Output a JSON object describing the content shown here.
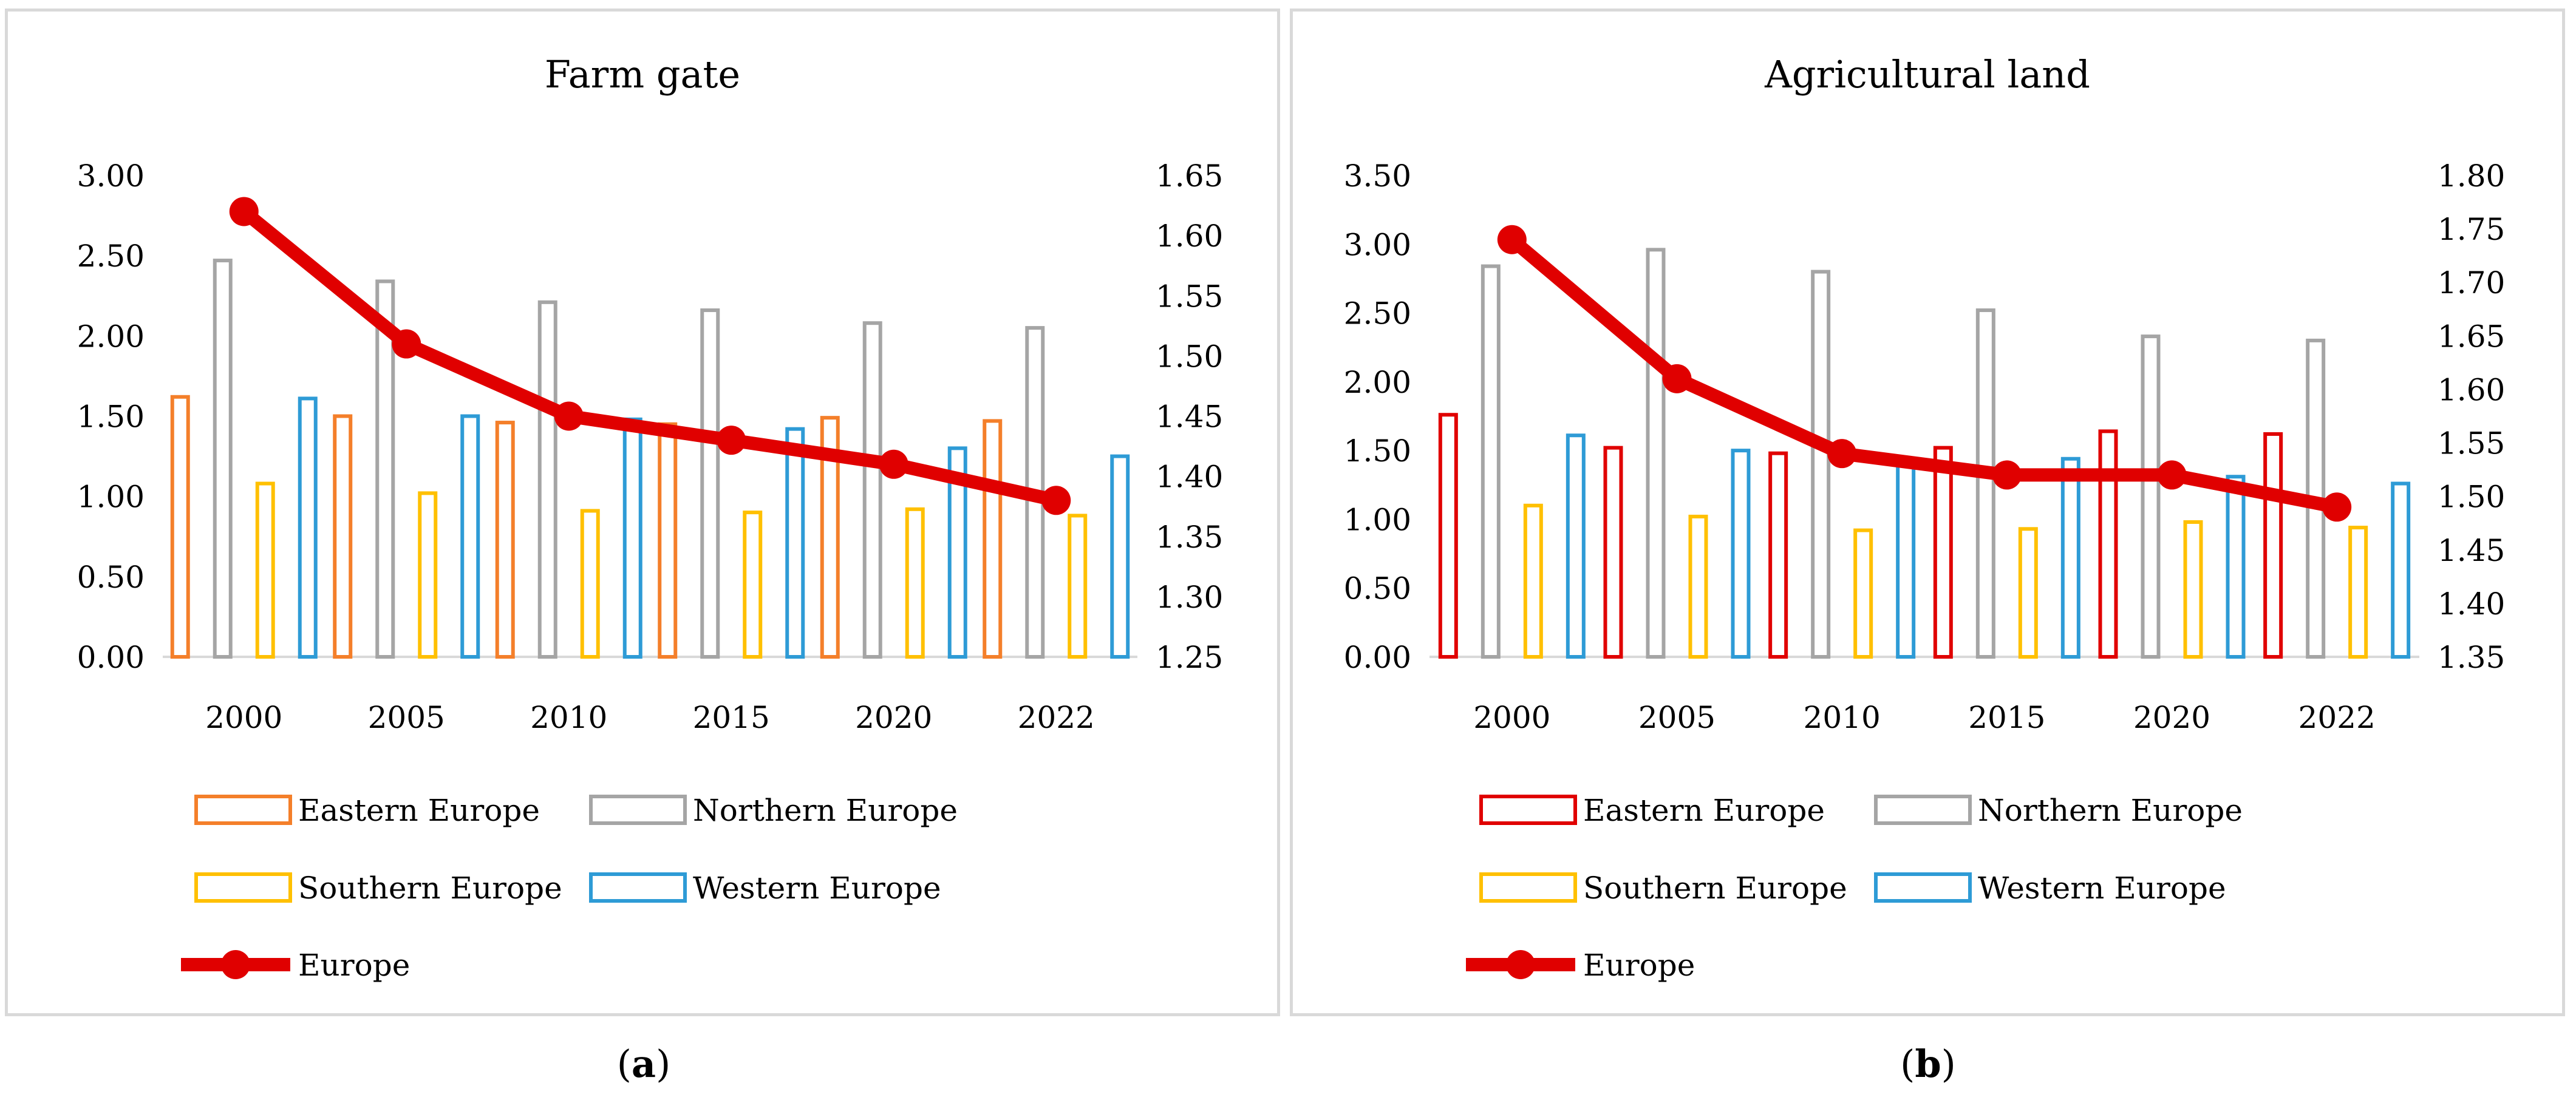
{
  "panels": [
    {
      "caption_letter": "a",
      "chart_data": {
        "type": "bar",
        "title": "Farm gate",
        "categories": [
          "2000",
          "2005",
          "2010",
          "2015",
          "2020",
          "2022"
        ],
        "left_axis": {
          "ylim": [
            0,
            3
          ],
          "ticks": [
            "0.00",
            "0.50",
            "1.00",
            "1.50",
            "2.00",
            "2.50",
            "3.00"
          ]
        },
        "right_axis": {
          "ylim": [
            1.25,
            1.65
          ],
          "ticks": [
            "1.25",
            "1.30",
            "1.35",
            "1.40",
            "1.45",
            "1.50",
            "1.55",
            "1.60",
            "1.65"
          ]
        },
        "series": [
          {
            "name": "Eastern Europe",
            "axis": "left",
            "kind": "bar",
            "color": "#f47f2a",
            "values": [
              1.62,
              1.5,
              1.46,
              1.45,
              1.49,
              1.47
            ]
          },
          {
            "name": "Northern Europe",
            "axis": "left",
            "kind": "bar",
            "color": "#a5a5a5",
            "values": [
              2.47,
              2.34,
              2.21,
              2.16,
              2.08,
              2.05
            ]
          },
          {
            "name": "Southern Europe",
            "axis": "left",
            "kind": "bar",
            "color": "#ffc000",
            "values": [
              1.08,
              1.02,
              0.91,
              0.9,
              0.92,
              0.88
            ]
          },
          {
            "name": "Western Europe",
            "axis": "left",
            "kind": "bar",
            "color": "#2e9bd6",
            "values": [
              1.61,
              1.5,
              1.48,
              1.42,
              1.3,
              1.25
            ]
          },
          {
            "name": "Europe",
            "axis": "right",
            "kind": "line",
            "color": "#e00000",
            "values": [
              1.62,
              1.51,
              1.45,
              1.43,
              1.41,
              1.38
            ]
          }
        ],
        "legend_position": "bottom"
      }
    },
    {
      "caption_letter": "b",
      "chart_data": {
        "type": "bar",
        "title": "Agricultural land",
        "categories": [
          "2000",
          "2005",
          "2010",
          "2015",
          "2020",
          "2022"
        ],
        "left_axis": {
          "ylim": [
            0,
            3.5
          ],
          "ticks": [
            "0.00",
            "0.50",
            "1.00",
            "1.50",
            "2.00",
            "2.50",
            "3.00",
            "3.50"
          ]
        },
        "right_axis": {
          "ylim": [
            1.35,
            1.8
          ],
          "ticks": [
            "1.35",
            "1.40",
            "1.45",
            "1.50",
            "1.55",
            "1.60",
            "1.65",
            "1.70",
            "1.75",
            "1.80"
          ]
        },
        "series": [
          {
            "name": "Eastern Europe",
            "axis": "left",
            "kind": "bar",
            "color": "#e00000",
            "values": [
              1.76,
              1.52,
              1.48,
              1.52,
              1.64,
              1.62
            ]
          },
          {
            "name": "Northern Europe",
            "axis": "left",
            "kind": "bar",
            "color": "#a5a5a5",
            "values": [
              2.84,
              2.96,
              2.8,
              2.52,
              2.33,
              2.3
            ]
          },
          {
            "name": "Southern Europe",
            "axis": "left",
            "kind": "bar",
            "color": "#ffc000",
            "values": [
              1.1,
              1.02,
              0.92,
              0.93,
              0.98,
              0.94
            ]
          },
          {
            "name": "Western Europe",
            "axis": "left",
            "kind": "bar",
            "color": "#2e9bd6",
            "values": [
              1.61,
              1.5,
              1.42,
              1.44,
              1.31,
              1.26
            ]
          },
          {
            "name": "Europe",
            "axis": "right",
            "kind": "line",
            "color": "#e00000",
            "values": [
              1.74,
              1.61,
              1.54,
              1.52,
              1.52,
              1.49
            ]
          }
        ],
        "legend_position": "bottom"
      }
    }
  ]
}
